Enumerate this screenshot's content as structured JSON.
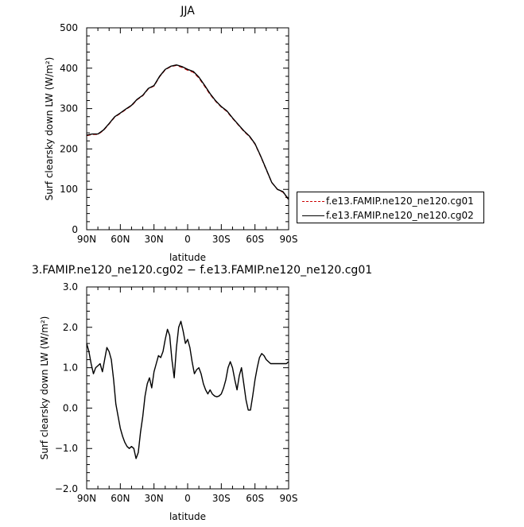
{
  "chart_data": [
    {
      "type": "line",
      "title": "JJA",
      "xlabel": "latitude",
      "ylabel": "Surf clearsky down LW (W/m²)",
      "xlim": [
        90,
        -90
      ],
      "ylim": [
        0,
        500
      ],
      "xticks": [
        "90N",
        "60N",
        "30N",
        "0",
        "30S",
        "60S",
        "90S"
      ],
      "xtick_values": [
        90,
        60,
        30,
        0,
        -30,
        -60,
        -90
      ],
      "yticks": [
        "0",
        "100",
        "200",
        "300",
        "400",
        "500"
      ],
      "ytick_values": [
        0,
        100,
        200,
        300,
        400,
        500
      ],
      "legend_position": "right",
      "series": [
        {
          "name": "f.e13.FAMIP.ne120_ne120.cg01",
          "color": "#cc0000",
          "dash": "dashed",
          "x": [
            90,
            85,
            80,
            75,
            70,
            65,
            60,
            55,
            50,
            45,
            40,
            35,
            30,
            25,
            20,
            15,
            10,
            5,
            0,
            -5,
            -10,
            -15,
            -20,
            -25,
            -30,
            -35,
            -40,
            -45,
            -50,
            -55,
            -60,
            -65,
            -70,
            -75,
            -80,
            -85,
            -90
          ],
          "y": [
            233,
            236,
            236,
            246,
            262,
            279,
            288,
            298,
            307,
            322,
            332,
            349,
            356,
            379,
            396,
            404,
            407,
            402,
            395,
            390,
            376,
            356,
            335,
            318,
            304,
            293,
            276,
            260,
            244,
            231,
            212,
            182,
            149,
            117,
            100,
            93,
            74
          ]
        },
        {
          "name": "f.e13.FAMIP.ne120_ne120.cg02",
          "color": "#000000",
          "dash": "solid",
          "x": [
            90,
            85,
            80,
            75,
            70,
            65,
            60,
            55,
            50,
            45,
            40,
            35,
            30,
            25,
            20,
            15,
            10,
            5,
            0,
            -5,
            -10,
            -15,
            -20,
            -25,
            -30,
            -35,
            -40,
            -45,
            -50,
            -55,
            -60,
            -65,
            -70,
            -75,
            -80,
            -85,
            -90
          ],
          "y": [
            234,
            237,
            237,
            247,
            263,
            280,
            289,
            299,
            308,
            323,
            333,
            350,
            357,
            380,
            397,
            405,
            408,
            404,
            397,
            392,
            378,
            358,
            337,
            319,
            305,
            294,
            277,
            261,
            245,
            232,
            213,
            183,
            150,
            117,
            100,
            94,
            75
          ]
        }
      ]
    },
    {
      "type": "line",
      "title": "3.FAMIP.ne120_ne120.cg02 − f.e13.FAMIP.ne120_ne120.cg01",
      "xlabel": "latitude",
      "ylabel": "Surf clearsky down LW (W/m²)",
      "xlim": [
        90,
        -90
      ],
      "ylim": [
        -2.0,
        3.0
      ],
      "xticks": [
        "90N",
        "60N",
        "30N",
        "0",
        "30S",
        "60S",
        "90S"
      ],
      "xtick_values": [
        90,
        60,
        30,
        0,
        -30,
        -60,
        -90
      ],
      "yticks": [
        "−2.0",
        "−1.0",
        "0.0",
        "1.0",
        "2.0",
        "3.0"
      ],
      "ytick_values": [
        -2,
        -1,
        0,
        1,
        2,
        3
      ],
      "series": [
        {
          "color": "#000000",
          "x": [
            90,
            88,
            86,
            84,
            82,
            80,
            78,
            76,
            74,
            72,
            70,
            68,
            66,
            64,
            62,
            60,
            58,
            56,
            54,
            52,
            50,
            48,
            46,
            44,
            42,
            40,
            38,
            36,
            34,
            32,
            30,
            28,
            26,
            24,
            22,
            20,
            18,
            16,
            14,
            12,
            10,
            8,
            6,
            4,
            2,
            0,
            -2,
            -4,
            -6,
            -8,
            -10,
            -12,
            -14,
            -16,
            -18,
            -20,
            -22,
            -24,
            -26,
            -28,
            -30,
            -32,
            -34,
            -36,
            -38,
            -40,
            -42,
            -44,
            -46,
            -48,
            -50,
            -52,
            -54,
            -56,
            -58,
            -60,
            -62,
            -64,
            -66,
            -68,
            -70,
            -72,
            -74,
            -76,
            -78,
            -80,
            -82,
            -84,
            -86,
            -88,
            -90
          ],
          "y": [
            1.6,
            1.4,
            1.1,
            0.85,
            1.0,
            1.05,
            1.1,
            0.9,
            1.2,
            1.5,
            1.4,
            1.2,
            0.7,
            0.1,
            -0.2,
            -0.5,
            -0.7,
            -0.85,
            -0.95,
            -1.0,
            -0.95,
            -1.0,
            -1.25,
            -1.1,
            -0.6,
            -0.2,
            0.3,
            0.6,
            0.75,
            0.5,
            0.9,
            1.1,
            1.3,
            1.25,
            1.4,
            1.7,
            1.95,
            1.8,
            1.2,
            0.75,
            1.5,
            2.0,
            2.15,
            1.9,
            1.6,
            1.7,
            1.5,
            1.15,
            0.85,
            0.95,
            1.0,
            0.85,
            0.6,
            0.45,
            0.35,
            0.45,
            0.35,
            0.3,
            0.28,
            0.3,
            0.35,
            0.5,
            0.7,
            1.0,
            1.15,
            1.0,
            0.7,
            0.45,
            0.8,
            1.0,
            0.6,
            0.2,
            -0.05,
            -0.05,
            0.3,
            0.7,
            1.0,
            1.25,
            1.35,
            1.3,
            1.2,
            1.15,
            1.1,
            1.1,
            1.1,
            1.1,
            1.1,
            1.1,
            1.1,
            1.1,
            1.15
          ]
        }
      ]
    }
  ]
}
